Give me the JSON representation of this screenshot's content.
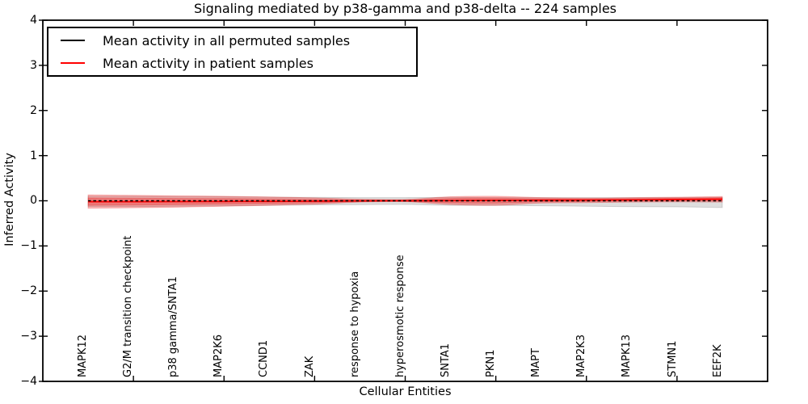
{
  "chart_data": {
    "type": "line",
    "title": "Signaling mediated by p38-gamma and p38-delta -- 224 samples",
    "xlabel": "Cellular Entities",
    "ylabel": "Inferred Activity",
    "xlim": [
      0,
      16
    ],
    "ylim": [
      -4,
      4
    ],
    "grid": false,
    "yticklabels": [
      "4",
      "3",
      "2",
      "1",
      "0",
      "−1",
      "−2",
      "−3",
      "−4"
    ],
    "xtick_positions": [
      2,
      4,
      6,
      8,
      10,
      12,
      14
    ],
    "categories": [
      "MAPK12",
      "G2/M transition checkpoint",
      "p38 gamma/SNTA1",
      "MAP2K6",
      "CCND1",
      "ZAK",
      "response to hypoxia",
      "hyperosmotic response",
      "SNTA1",
      "PKN1",
      "MAPT",
      "MAP2K3",
      "MAPK13",
      "STMN1",
      "EEF2K"
    ],
    "x": [
      1,
      2,
      3,
      4,
      5,
      6,
      7,
      8,
      9,
      10,
      11,
      12,
      13,
      14,
      15
    ],
    "series": [
      {
        "name": "Mean activity in all permuted samples",
        "color": "#000000",
        "style": "dashed",
        "band_color": "#888888",
        "values": [
          0,
          0,
          0,
          0,
          0,
          0,
          0,
          0,
          0,
          0,
          0,
          0,
          0,
          0,
          0
        ],
        "band_upper": [
          0.1,
          0.1,
          0.095,
          0.09,
          0.08,
          0.075,
          0.07,
          0.07,
          0.075,
          0.07,
          0.07,
          0.07,
          0.07,
          0.07,
          0.075
        ],
        "band_lower": [
          -0.13,
          -0.13,
          -0.12,
          -0.11,
          -0.1,
          -0.09,
          -0.085,
          -0.08,
          -0.1,
          -0.1,
          -0.11,
          -0.12,
          -0.13,
          -0.135,
          -0.15
        ]
      },
      {
        "name": "Mean activity in patient samples",
        "color": "#ff0000",
        "style": "solid",
        "band_color": "#ff0000",
        "values": [
          -0.02,
          -0.02,
          -0.018,
          -0.015,
          -0.012,
          -0.008,
          -0.002,
          0,
          0.005,
          0.01,
          0.012,
          0.015,
          0.02,
          0.028,
          0.035
        ],
        "band_upper": [
          0.13,
          0.12,
          0.11,
          0.1,
          0.085,
          0.065,
          0.035,
          0.03,
          0.09,
          0.1,
          0.07,
          0.06,
          0.07,
          0.08,
          0.095
        ],
        "band_lower": [
          -0.165,
          -0.155,
          -0.14,
          -0.12,
          -0.1,
          -0.075,
          -0.03,
          -0.02,
          -0.08,
          -0.1,
          -0.05,
          -0.04,
          -0.03,
          -0.025,
          -0.03
        ]
      }
    ],
    "legend": {
      "position": "upper left",
      "entries": [
        {
          "label": "Mean activity in all permuted samples",
          "color": "#000000"
        },
        {
          "label": "Mean activity in patient samples",
          "color": "#ff0000"
        }
      ]
    }
  }
}
